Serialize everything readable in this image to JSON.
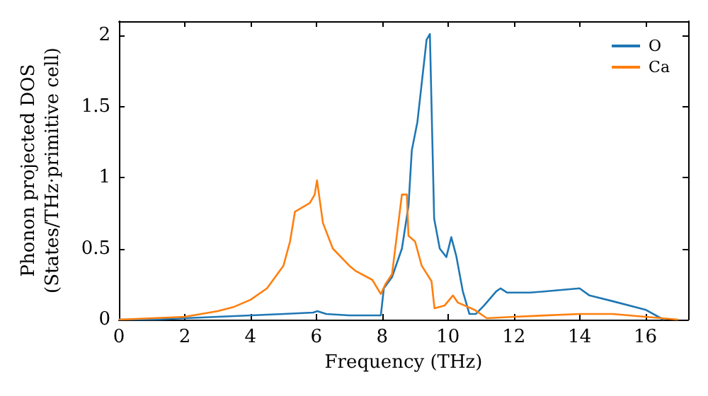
{
  "chart_data": {
    "type": "line",
    "xlabel": "Frequency (THz)",
    "ylabel": "Phonon projected DOS\n(States/THz·primitive cell)",
    "xlim": [
      0,
      17.3
    ],
    "xticks": [
      0,
      2,
      4,
      6,
      8,
      10,
      12,
      14,
      16
    ],
    "ylim": [
      0,
      2.1
    ],
    "yticks": [
      0,
      0.5,
      1,
      1.5,
      2
    ],
    "grid": false,
    "legend": "top right",
    "marker": "none",
    "line_style": "solid",
    "series": [
      {
        "name": "O",
        "color": "#1f77b4",
        "x": [
          0,
          1,
          2,
          3,
          4,
          5,
          5.9,
          6.03,
          6.3,
          7,
          7.96,
          8.05,
          8.3,
          8.6,
          8.8,
          8.9,
          9.07,
          9.35,
          9.45,
          9.58,
          9.75,
          9.95,
          10.1,
          10.25,
          10.45,
          10.65,
          10.85,
          11.1,
          11.47,
          11.6,
          11.8,
          12.5,
          14.0,
          14.3,
          15,
          16,
          16.55
        ],
        "values": [
          0,
          0,
          0.01,
          0.02,
          0.03,
          0.04,
          0.05,
          0.06,
          0.04,
          0.03,
          0.03,
          0.22,
          0.3,
          0.5,
          0.8,
          1.19,
          1.39,
          1.97,
          2.01,
          0.71,
          0.5,
          0.44,
          0.58,
          0.45,
          0.2,
          0.04,
          0.04,
          0.1,
          0.2,
          0.22,
          0.19,
          0.19,
          0.22,
          0.17,
          0.13,
          0.07,
          0
        ]
      },
      {
        "name": "Ca",
        "color": "#ff7f0e",
        "x": [
          0,
          1,
          2,
          3,
          3.5,
          4,
          4.5,
          5,
          5.2,
          5.35,
          5.8,
          5.95,
          6.02,
          6.2,
          6.5,
          7,
          7.21,
          7.7,
          7.96,
          8.1,
          8.3,
          8.6,
          8.75,
          8.8,
          9.0,
          9.2,
          9.5,
          9.59,
          9.9,
          10.15,
          10.3,
          10.8,
          11.18,
          12,
          14,
          15,
          16,
          16.5,
          17
        ],
        "values": [
          0,
          0.01,
          0.02,
          0.06,
          0.09,
          0.14,
          0.22,
          0.38,
          0.55,
          0.76,
          0.82,
          0.88,
          0.98,
          0.68,
          0.5,
          0.38,
          0.34,
          0.28,
          0.18,
          0.25,
          0.32,
          0.88,
          0.88,
          0.59,
          0.55,
          0.38,
          0.27,
          0.08,
          0.1,
          0.17,
          0.12,
          0.07,
          0.01,
          0.02,
          0.04,
          0.04,
          0.02,
          0.01,
          0
        ]
      }
    ]
  }
}
